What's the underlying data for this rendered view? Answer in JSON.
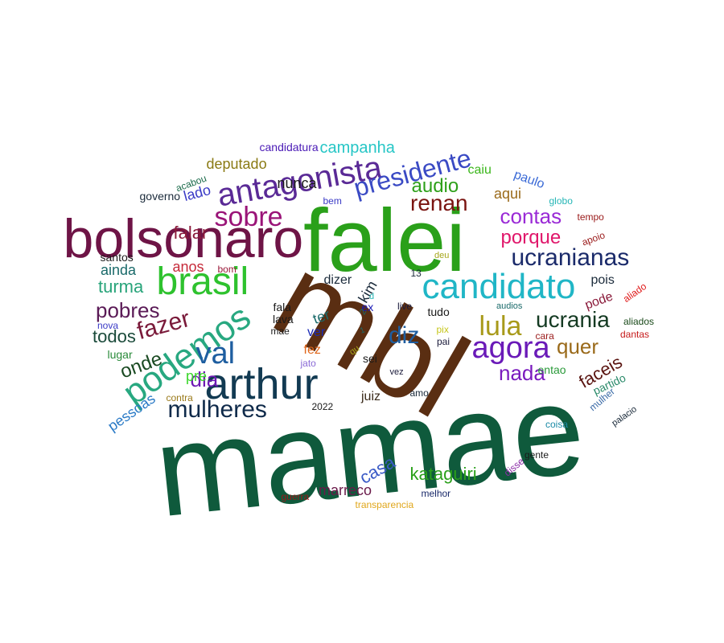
{
  "words": [
    {
      "text": "mamae",
      "color": "#0f5a3c"
    },
    {
      "text": "mbl",
      "color": "#5a2e12"
    },
    {
      "text": "falei",
      "color": "#2aa01a"
    },
    {
      "text": "bolsonaro",
      "color": "#6e1446"
    },
    {
      "text": "arthur",
      "color": "#123a52"
    },
    {
      "text": "candidato",
      "color": "#20b6c6"
    },
    {
      "text": "brasil",
      "color": "#2ec22e"
    },
    {
      "text": "antagonista",
      "color": "#5a2a96"
    },
    {
      "text": "podemos",
      "color": "#28a880"
    },
    {
      "text": "presidente",
      "color": "#3a4ac4"
    },
    {
      "text": "agora",
      "color": "#6a1ab8"
    },
    {
      "text": "ucranianas",
      "color": "#1a2a6a"
    },
    {
      "text": "val",
      "color": "#1e5ea0"
    },
    {
      "text": "sobre",
      "color": "#9a1478"
    },
    {
      "text": "lula",
      "color": "#a89a1a"
    },
    {
      "text": "mulheres",
      "color": "#0f2a4a"
    },
    {
      "text": "fazer",
      "color": "#7a1a3a"
    },
    {
      "text": "contas",
      "color": "#9a2ad6"
    },
    {
      "text": "porque",
      "color": "#e0166a"
    },
    {
      "text": "renan",
      "color": "#7a1410"
    },
    {
      "text": "ucrania",
      "color": "#143a22"
    },
    {
      "text": "diz",
      "color": "#1e5ea0"
    },
    {
      "text": "nada",
      "color": "#7a1abe"
    },
    {
      "text": "quer",
      "color": "#9a6a1a"
    },
    {
      "text": "dia",
      "color": "#6e1ab4"
    },
    {
      "text": "pobres",
      "color": "#5a1a56"
    },
    {
      "text": "audio",
      "color": "#2ea01a"
    },
    {
      "text": "faceis",
      "color": "#5a1410"
    },
    {
      "text": "kataguiri",
      "color": "#2aa01a"
    },
    {
      "text": "onde",
      "color": "#1a4a22"
    },
    {
      "text": "campanha",
      "color": "#26c6c6"
    },
    {
      "text": "falar",
      "color": "#8a1a3a"
    },
    {
      "text": "turma",
      "color": "#28a47a"
    },
    {
      "text": "todos",
      "color": "#1a4a3a"
    },
    {
      "text": "casa",
      "color": "#3a5ac6"
    },
    {
      "text": "pre",
      "color": "#3ad62a"
    },
    {
      "text": "marreco",
      "color": "#6a1a4a"
    },
    {
      "text": "aqui",
      "color": "#9a6a1a"
    },
    {
      "text": "anos",
      "color": "#c62a3a"
    },
    {
      "text": "deputado",
      "color": "#8a7a14"
    },
    {
      "text": "nunca",
      "color": "#1a1a1a"
    },
    {
      "text": "ainda",
      "color": "#1a6a6a"
    },
    {
      "text": "pessoas",
      "color": "#2a7ac6"
    },
    {
      "text": "caiu",
      "color": "#3ab61a"
    },
    {
      "text": "pois",
      "color": "#1a2a3a"
    },
    {
      "text": "pode",
      "color": "#8a1a3a"
    },
    {
      "text": "candidatura",
      "color": "#4a1ab6"
    },
    {
      "text": "paulo",
      "color": "#3a6ad6"
    },
    {
      "text": "ver",
      "color": "#1a2ab6"
    },
    {
      "text": "juiz",
      "color": "#3a2a1a"
    },
    {
      "text": "lado",
      "color": "#3a3ac6"
    },
    {
      "text": "partido",
      "color": "#2a8a6a"
    },
    {
      "text": "fala",
      "color": "#1a1a1a"
    },
    {
      "text": "lava",
      "color": "#1a1a1a"
    },
    {
      "text": "mae",
      "color": "#1a1a1a"
    },
    {
      "text": "sei",
      "color": "#1a1a1a"
    },
    {
      "text": "fez",
      "color": "#e0661a"
    },
    {
      "text": "ter",
      "color": "#1a6a6a"
    },
    {
      "text": "dizer",
      "color": "#1a2a3a"
    },
    {
      "text": "kim",
      "color": "#1a2a3a"
    },
    {
      "text": "tudo",
      "color": "#1a1a1a"
    },
    {
      "text": "entao",
      "color": "#2a9a3a"
    },
    {
      "text": "governo",
      "color": "#1a2a3a"
    },
    {
      "text": "santos",
      "color": "#1a1a1a"
    },
    {
      "text": "lugar",
      "color": "#2a8a3a"
    },
    {
      "text": "guerra",
      "color": "#9a1a1a"
    },
    {
      "text": "melhor",
      "color": "#1a2a6a"
    },
    {
      "text": "2022",
      "color": "#1a1a1a"
    },
    {
      "text": "amo",
      "color": "#1a2a3a"
    },
    {
      "text": "coisa",
      "color": "#1a8aa6"
    },
    {
      "text": "gente",
      "color": "#1a1a1a"
    },
    {
      "text": "mulher",
      "color": "#3a6aa6"
    },
    {
      "text": "disse",
      "color": "#8a2aa6"
    },
    {
      "text": "cara",
      "color": "#9a1a1a"
    },
    {
      "text": "aliados",
      "color": "#1a4a1a"
    },
    {
      "text": "dantas",
      "color": "#c61a1a"
    },
    {
      "text": "globo",
      "color": "#26b6b6"
    },
    {
      "text": "transparencia",
      "color": "#e0a61a"
    },
    {
      "text": "contra",
      "color": "#9a7a1a"
    },
    {
      "text": "nova",
      "color": "#3a3ac6"
    },
    {
      "text": "jato",
      "color": "#8a6ad6"
    },
    {
      "text": "acabou",
      "color": "#1a6a4a"
    },
    {
      "text": "bem",
      "color": "#3a3ac6"
    },
    {
      "text": "bom",
      "color": "#9a1a3a"
    },
    {
      "text": "deu",
      "color": "#a6a61a"
    },
    {
      "text": "13",
      "color": "#1a2a3a"
    },
    {
      "text": "ex",
      "color": "#1a1ab6"
    },
    {
      "text": "d",
      "color": "#26b6b6"
    },
    {
      "text": "1",
      "color": "#1a6a6a"
    },
    {
      "text": "2",
      "color": "#1a6a6a"
    },
    {
      "text": "live",
      "color": "#1a1a3a"
    },
    {
      "text": "audios",
      "color": "#1a6a6a"
    },
    {
      "text": "pix",
      "color": "#c6c61a"
    },
    {
      "text": "pai",
      "color": "#1a1a3a"
    },
    {
      "text": "qu",
      "color": "#a6a61a"
    },
    {
      "text": "vez",
      "color": "#1a1a3a"
    },
    {
      "text": "tempo",
      "color": "#9a1a1a"
    },
    {
      "text": "apoio",
      "color": "#9a1a1a"
    },
    {
      "text": "aliado",
      "color": "#e01a1a"
    },
    {
      "text": "palacio",
      "color": "#1a2a3a"
    }
  ]
}
